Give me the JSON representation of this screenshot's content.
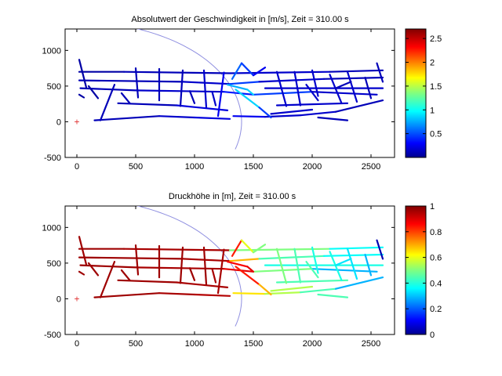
{
  "chart_data": [
    {
      "type": "line",
      "title": "Absolutwert der Geschwindigkeit in [m/s], Zeit = 310.00 s",
      "xlim": [
        -100,
        2700
      ],
      "ylim": [
        -500,
        1300
      ],
      "xticks": [
        "0",
        "500",
        "1000",
        "1500",
        "2000",
        "2500"
      ],
      "xtick_values": [
        0,
        500,
        1000,
        1500,
        2000,
        2500
      ],
      "yticks": [
        "-500",
        "0",
        "500",
        "1000"
      ],
      "ytick_values": [
        -500,
        0,
        500,
        1000
      ],
      "marker": {
        "x": 0,
        "y": 0,
        "symbol": "+",
        "color": "#e03030"
      },
      "arc": {
        "cx": 0,
        "cy": 0,
        "r": 1400,
        "color": "#8f8fe0"
      },
      "colorbar": {
        "colormap": "jet",
        "range": [
          0,
          2.7
        ],
        "tick_labels": [
          "0.5",
          "1",
          "1.5",
          "2",
          "2.5"
        ],
        "tick_values": [
          0.5,
          1,
          1.5,
          2,
          2.5
        ]
      },
      "field": "velocity"
    },
    {
      "type": "line",
      "title": "Druckhöhe in [m], Zeit = 310.00 s",
      "xlim": [
        -100,
        2700
      ],
      "ylim": [
        -500,
        1300
      ],
      "xticks": [
        "0",
        "500",
        "1000",
        "1500",
        "2000",
        "2500"
      ],
      "xtick_values": [
        0,
        500,
        1000,
        1500,
        2000,
        2500
      ],
      "yticks": [
        "-500",
        "0",
        "500",
        "1000"
      ],
      "ytick_values": [
        -500,
        0,
        500,
        1000
      ],
      "marker": {
        "x": 0,
        "y": 0,
        "symbol": "+",
        "color": "#e03030"
      },
      "arc": {
        "cx": 0,
        "cy": 0,
        "r": 1400,
        "color": "#8f8fe0"
      },
      "colorbar": {
        "colormap": "jet",
        "range": [
          0,
          1
        ],
        "tick_labels": [
          "0",
          "0.2",
          "0.4",
          "0.6",
          "0.8",
          "1"
        ],
        "tick_values": [
          0,
          0.2,
          0.4,
          0.6,
          0.8,
          1
        ]
      },
      "field": "pressure"
    }
  ],
  "network": {
    "segments": [
      [
        [
          20,
          700
        ],
        [
          400,
          700
        ]
      ],
      [
        [
          400,
          700
        ],
        [
          1300,
          680
        ]
      ],
      [
        [
          1300,
          680
        ],
        [
          2150,
          700
        ]
      ],
      [
        [
          2150,
          700
        ],
        [
          2600,
          720
        ]
      ],
      [
        [
          20,
          580
        ],
        [
          900,
          560
        ]
      ],
      [
        [
          900,
          560
        ],
        [
          1300,
          530
        ]
      ],
      [
        [
          1300,
          530
        ],
        [
          1550,
          560
        ]
      ],
      [
        [
          1550,
          560
        ],
        [
          2100,
          600
        ]
      ],
      [
        [
          2100,
          600
        ],
        [
          2600,
          620
        ]
      ],
      [
        [
          30,
          470
        ],
        [
          500,
          440
        ]
      ],
      [
        [
          500,
          440
        ],
        [
          1250,
          420
        ]
      ],
      [
        [
          1250,
          420
        ],
        [
          1500,
          380
        ]
      ],
      [
        [
          1500,
          380
        ],
        [
          2000,
          420
        ]
      ],
      [
        [
          2000,
          420
        ],
        [
          2550,
          380
        ]
      ],
      [
        [
          350,
          260
        ],
        [
          850,
          230
        ]
      ],
      [
        [
          850,
          230
        ],
        [
          1280,
          160
        ]
      ],
      [
        [
          150,
          20
        ],
        [
          700,
          80
        ]
      ],
      [
        [
          700,
          80
        ],
        [
          1000,
          60
        ]
      ],
      [
        [
          1000,
          60
        ],
        [
          1300,
          40
        ]
      ],
      [
        [
          1330,
          80
        ],
        [
          1600,
          70
        ]
      ],
      [
        [
          1600,
          70
        ],
        [
          1900,
          90
        ]
      ],
      [
        [
          1900,
          90
        ],
        [
          2200,
          140
        ]
      ],
      [
        [
          2200,
          140
        ],
        [
          2600,
          300
        ]
      ],
      [
        [
          1600,
          470
        ],
        [
          2600,
          470
        ]
      ],
      [
        [
          1700,
          230
        ],
        [
          2300,
          260
        ]
      ],
      [
        [
          1650,
          110
        ],
        [
          2000,
          170
        ]
      ],
      [
        [
          2050,
          60
        ],
        [
          2300,
          20
        ]
      ],
      [
        [
          20,
          870
        ],
        [
          80,
          480
        ]
      ],
      [
        [
          100,
          500
        ],
        [
          180,
          330
        ]
      ],
      [
        [
          320,
          520
        ],
        [
          200,
          20
        ]
      ],
      [
        [
          500,
          750
        ],
        [
          520,
          340
        ]
      ],
      [
        [
          700,
          740
        ],
        [
          700,
          300
        ]
      ],
      [
        [
          900,
          720
        ],
        [
          880,
          220
        ]
      ],
      [
        [
          1080,
          720
        ],
        [
          1100,
          200
        ]
      ],
      [
        [
          1250,
          690
        ],
        [
          1200,
          80
        ]
      ],
      [
        [
          1320,
          600
        ],
        [
          1400,
          820
        ]
      ],
      [
        [
          1400,
          820
        ],
        [
          1500,
          650
        ]
      ],
      [
        [
          1500,
          650
        ],
        [
          1600,
          760
        ]
      ],
      [
        [
          1350,
          450
        ],
        [
          1550,
          200
        ]
      ],
      [
        [
          1550,
          200
        ],
        [
          1650,
          60
        ]
      ],
      [
        [
          1700,
          700
        ],
        [
          1780,
          220
        ]
      ],
      [
        [
          1850,
          700
        ],
        [
          1900,
          230
        ]
      ],
      [
        [
          2000,
          720
        ],
        [
          2050,
          360
        ]
      ],
      [
        [
          2150,
          660
        ],
        [
          2250,
          260
        ]
      ],
      [
        [
          2300,
          700
        ],
        [
          2380,
          280
        ]
      ],
      [
        [
          2450,
          620
        ],
        [
          2500,
          330
        ]
      ],
      [
        [
          2550,
          820
        ],
        [
          2600,
          560
        ]
      ],
      [
        [
          1280,
          520
        ],
        [
          1450,
          450
        ]
      ],
      [
        [
          1450,
          450
        ],
        [
          1500,
          380
        ]
      ],
      [
        [
          960,
          430
        ],
        [
          1000,
          260
        ]
      ],
      [
        [
          1150,
          420
        ],
        [
          1180,
          230
        ]
      ],
      [
        [
          380,
          400
        ],
        [
          450,
          260
        ]
      ],
      [
        [
          20,
          380
        ],
        [
          60,
          340
        ]
      ],
      [
        [
          1950,
          520
        ],
        [
          2050,
          300
        ]
      ],
      [
        [
          2200,
          470
        ],
        [
          2330,
          560
        ]
      ]
    ],
    "velocity": [
      0.1,
      0.15,
      0.2,
      0.15,
      0.15,
      0.2,
      0.5,
      0.2,
      0.15,
      0.15,
      0.2,
      0.4,
      0.5,
      0.2,
      0.15,
      0.25,
      0.15,
      0.2,
      0.25,
      0.3,
      0.2,
      0.2,
      0.15,
      0.2,
      0.2,
      0.2,
      0.15,
      0.1,
      0.1,
      0.15,
      0.15,
      0.15,
      0.15,
      0.2,
      0.3,
      0.6,
      0.5,
      0.3,
      0.9,
      0.5,
      0.2,
      0.2,
      0.2,
      0.2,
      0.2,
      0.15,
      0.15,
      0.8,
      0.9,
      0.15,
      0.2,
      0.15,
      0.1,
      0.2,
      0.15
    ],
    "pressure": [
      0.97,
      0.96,
      0.5,
      0.38,
      0.97,
      0.96,
      0.7,
      0.45,
      0.38,
      0.97,
      0.96,
      0.9,
      0.5,
      0.3,
      0.97,
      0.96,
      0.97,
      0.96,
      0.95,
      0.65,
      0.55,
      0.45,
      0.3,
      0.4,
      0.45,
      0.55,
      0.45,
      0.97,
      0.97,
      0.97,
      0.97,
      0.97,
      0.97,
      0.97,
      0.96,
      0.85,
      0.6,
      0.5,
      0.85,
      0.7,
      0.5,
      0.45,
      0.4,
      0.4,
      0.35,
      0.3,
      0.05,
      0.88,
      0.9,
      0.97,
      0.96,
      0.97,
      0.97,
      0.45,
      0.35
    ]
  },
  "colors": {
    "axis": "#000000",
    "background": "#ffffff"
  }
}
